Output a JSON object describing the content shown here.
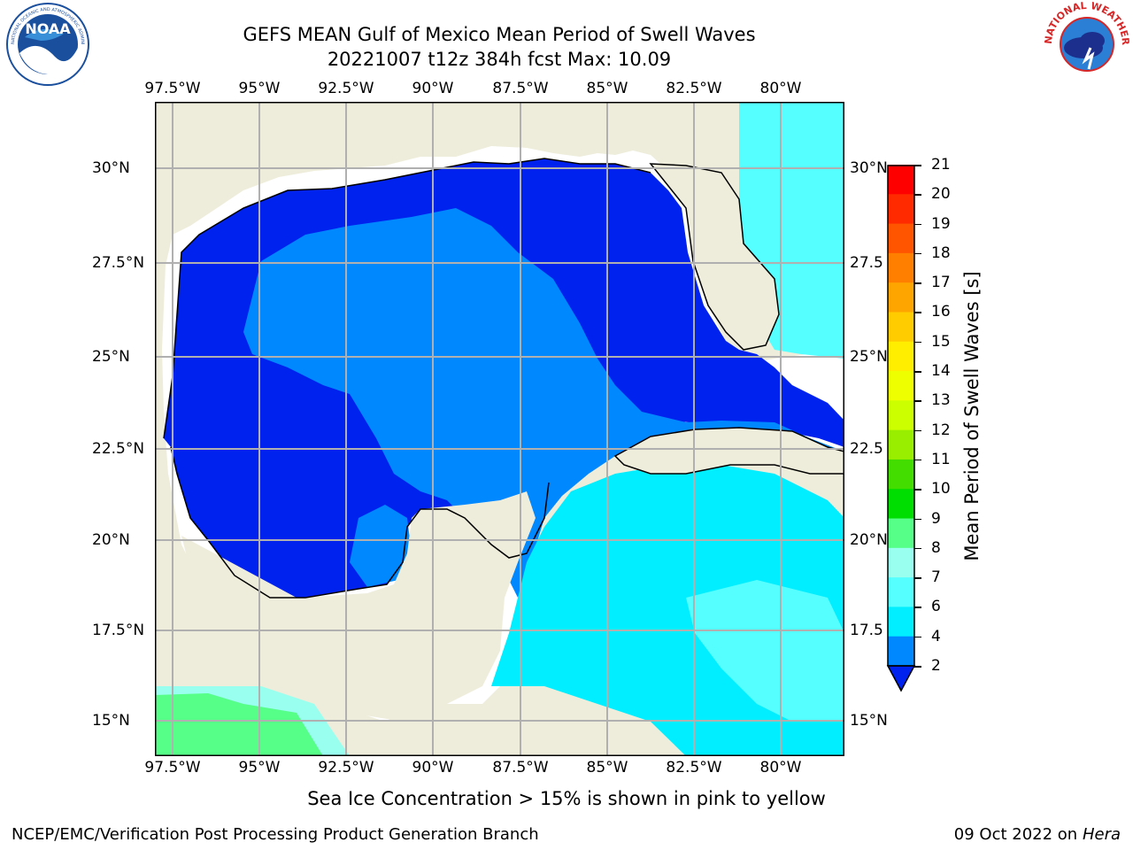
{
  "title": {
    "line1": "GEFS MEAN Gulf of Mexico Mean Period of Swell Waves",
    "line2": "20221007 t12z 384h fcst   Max: 10.09"
  },
  "logos": {
    "noaa": {
      "text": "NOAA",
      "ring": "NATIONAL OCEANIC AND ATMOSPHERIC ADMINISTRATION · U.S. DEPARTMENT OF COMMERCE"
    },
    "nws": {
      "ring": "NATIONAL WEATHER SERVICE"
    }
  },
  "map": {
    "lon_labels": [
      "97.5°W",
      "95°W",
      "92.5°W",
      "90°W",
      "87.5°W",
      "85°W",
      "82.5°W",
      "80°W"
    ],
    "lat_labels_left": [
      "30°N",
      "27.5°N",
      "25°N",
      "22.5°N",
      "20°N",
      "17.5°N",
      "15°N"
    ],
    "lat_labels_right": [
      "30°N",
      "27.5",
      "25°N",
      "22.5",
      "20°N",
      "17.5",
      "15°N"
    ]
  },
  "colorbar": {
    "label": "Mean Period of Swell Waves [s]",
    "ticks": [
      "21",
      "20",
      "19",
      "18",
      "17",
      "16",
      "15",
      "14",
      "13",
      "12",
      "11",
      "10",
      "9",
      "8",
      "7",
      "6",
      "4",
      "2"
    ],
    "colors": [
      "#ff0000",
      "#ff2a00",
      "#ff5500",
      "#ff7f00",
      "#ffa500",
      "#ffcc00",
      "#ffee00",
      "#eeff00",
      "#ccff00",
      "#99ee00",
      "#44dd00",
      "#00dd00",
      "#55ff88",
      "#99ffee",
      "#55ffff",
      "#00eeff",
      "#0088ff",
      "#0022ee"
    ]
  },
  "note": "Sea Ice Concentration > 15% is shown in pink to yellow",
  "footer": {
    "left": "NCEP/EMC/Verification Post Processing Product Generation Branch",
    "right_date": "09 Oct 2022 on ",
    "right_host": "Hera"
  }
}
